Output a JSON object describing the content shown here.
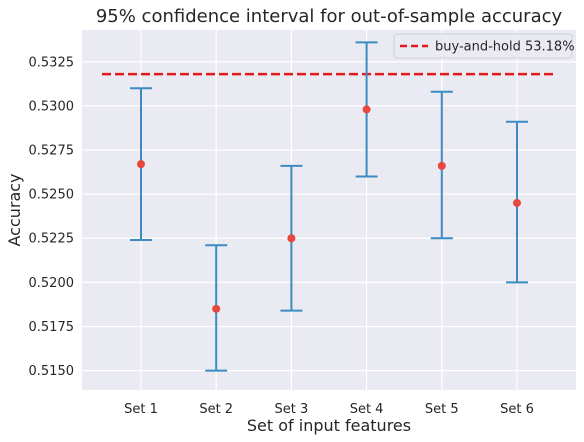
{
  "chart_data": {
    "type": "scatter",
    "title": "95% confidence interval for out-of-sample accuracy",
    "xlabel": "Set of input features",
    "ylabel": "Accuracy",
    "categories": [
      "Set 1",
      "Set 2",
      "Set 3",
      "Set 4",
      "Set 5",
      "Set 6"
    ],
    "series": [
      {
        "kind": "errorbar",
        "mean": [
          0.5267,
          0.5185,
          0.5225,
          0.5298,
          0.5266,
          0.5245
        ],
        "lower": [
          0.5224,
          0.515,
          0.5184,
          0.526,
          0.5225,
          0.52
        ],
        "upper": [
          0.531,
          0.5221,
          0.5266,
          0.5336,
          0.5308,
          0.5291
        ],
        "point_color": "#e8473e",
        "bar_color": "#3a8cc1"
      }
    ],
    "reference_line": {
      "name": "buy-and-hold 53.18%",
      "value": 0.5318,
      "color": "#e31a1c",
      "style": "dashed"
    },
    "yticks": [
      "0.5150",
      "0.5175",
      "0.5200",
      "0.5225",
      "0.5250",
      "0.5275",
      "0.5300",
      "0.5325"
    ],
    "ylim": [
      0.5139,
      0.5343
    ],
    "grid": true,
    "legend_position": "top-right",
    "background": "#eaeaf2",
    "gridline_color": "#ffffff"
  }
}
